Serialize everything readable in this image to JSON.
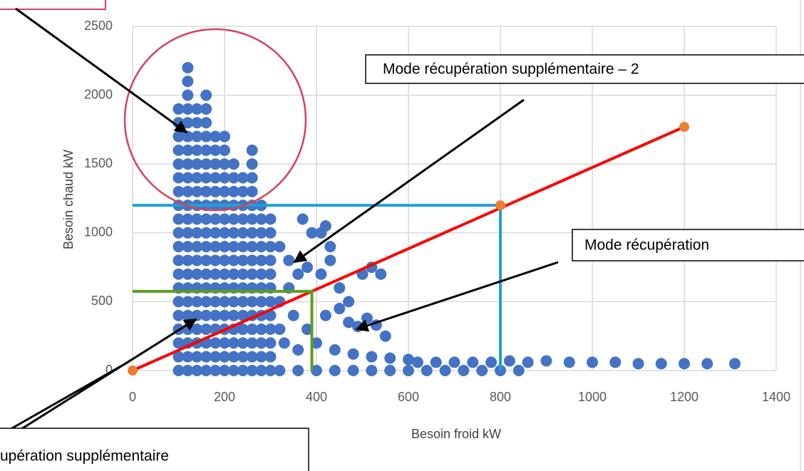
{
  "chart_data": {
    "type": "scatter",
    "x_label": "Besoin froid kW",
    "y_label": "Besoin chaud kW",
    "xlim": [
      0,
      1400
    ],
    "xticks": [
      0,
      200,
      400,
      600,
      800,
      1000,
      1200,
      1400
    ],
    "ylim": [
      0,
      2500
    ],
    "yticks": [
      0,
      500,
      1000,
      1500,
      2000,
      2500
    ],
    "grid": true,
    "series": [
      {
        "color": "#4472c4",
        "x": [
          100,
          100,
          100,
          100,
          100,
          100,
          100,
          100,
          100,
          100,
          100,
          100,
          100,
          100,
          100,
          100,
          100,
          100,
          100,
          100,
          120,
          120,
          120,
          120,
          120,
          120,
          120,
          120,
          120,
          120,
          120,
          120,
          120,
          120,
          120,
          120,
          120,
          120,
          120,
          120,
          120,
          120,
          120,
          140,
          140,
          140,
          140,
          140,
          140,
          140,
          140,
          140,
          140,
          140,
          140,
          140,
          140,
          140,
          140,
          140,
          140,
          140,
          140,
          160,
          160,
          160,
          160,
          160,
          160,
          160,
          160,
          160,
          160,
          160,
          160,
          160,
          160,
          160,
          160,
          160,
          160,
          160,
          160,
          160,
          180,
          180,
          180,
          180,
          180,
          180,
          180,
          180,
          180,
          180,
          180,
          180,
          180,
          180,
          180,
          180,
          180,
          180,
          200,
          200,
          200,
          200,
          200,
          200,
          200,
          200,
          200,
          200,
          200,
          200,
          200,
          200,
          200,
          200,
          200,
          200,
          220,
          220,
          220,
          220,
          220,
          220,
          220,
          220,
          220,
          220,
          220,
          220,
          220,
          220,
          220,
          220,
          240,
          240,
          240,
          240,
          240,
          240,
          240,
          240,
          240,
          240,
          240,
          240,
          240,
          240,
          240,
          260,
          260,
          260,
          260,
          260,
          260,
          260,
          260,
          260,
          260,
          260,
          260,
          260,
          260,
          260,
          260,
          260,
          280,
          280,
          280,
          280,
          280,
          280,
          280,
          280,
          280,
          280,
          280,
          280,
          280,
          300,
          300,
          300,
          300,
          300,
          300,
          300,
          300,
          300,
          300,
          300,
          320,
          340,
          360,
          370,
          390,
          410,
          420,
          430,
          380,
          410,
          430,
          450,
          470,
          500,
          520,
          540,
          320,
          350,
          380,
          420,
          450,
          470,
          490,
          510,
          530,
          550,
          330,
          360,
          400,
          440,
          480,
          520,
          560,
          600,
          320,
          360,
          400,
          440,
          480,
          520,
          560,
          600,
          640,
          680,
          720,
          760,
          800,
          840,
          620,
          660,
          700,
          740,
          780,
          820,
          860,
          900,
          950,
          1000,
          1050,
          1100,
          1150,
          1200,
          1250,
          1310,
          320,
          340,
          300
        ],
        "values": [
          0,
          100,
          200,
          300,
          400,
          500,
          600,
          700,
          800,
          900,
          1000,
          1100,
          1200,
          1300,
          1400,
          1500,
          1600,
          1700,
          1800,
          1900,
          0,
          100,
          200,
          300,
          400,
          500,
          600,
          700,
          800,
          900,
          1000,
          1100,
          1200,
          1300,
          1400,
          1500,
          1600,
          1700,
          1800,
          1900,
          2000,
          2100,
          2200,
          0,
          100,
          200,
          300,
          400,
          500,
          600,
          700,
          800,
          900,
          1000,
          1100,
          1200,
          1300,
          1400,
          1500,
          1600,
          1700,
          1800,
          1900,
          0,
          100,
          200,
          300,
          400,
          500,
          600,
          700,
          800,
          900,
          1000,
          1100,
          1200,
          1300,
          1400,
          1500,
          1600,
          1700,
          1800,
          1900,
          2000,
          0,
          100,
          200,
          300,
          400,
          500,
          600,
          700,
          800,
          900,
          1000,
          1100,
          1200,
          1300,
          1400,
          1500,
          1600,
          1700,
          0,
          100,
          200,
          300,
          400,
          500,
          600,
          700,
          800,
          900,
          1000,
          1100,
          1200,
          1300,
          1400,
          1500,
          1600,
          1700,
          0,
          100,
          200,
          300,
          400,
          500,
          600,
          700,
          800,
          900,
          1000,
          1100,
          1200,
          1300,
          1400,
          1500,
          0,
          100,
          200,
          300,
          400,
          500,
          600,
          700,
          800,
          900,
          1000,
          1100,
          1200,
          1300,
          1400,
          0,
          100,
          200,
          300,
          400,
          500,
          600,
          700,
          800,
          900,
          1000,
          1100,
          1200,
          1300,
          1400,
          1500,
          1600,
          0,
          100,
          200,
          300,
          400,
          500,
          600,
          700,
          800,
          900,
          1000,
          1100,
          1200,
          0,
          100,
          200,
          300,
          400,
          500,
          600,
          700,
          800,
          900,
          1000,
          900,
          800,
          700,
          1100,
          1000,
          1000,
          1050,
          900,
          750,
          700,
          800,
          600,
          500,
          700,
          750,
          700,
          500,
          400,
          300,
          400,
          450,
          350,
          320,
          380,
          330,
          250,
          200,
          150,
          200,
          150,
          120,
          100,
          90,
          80,
          0,
          0,
          0,
          0,
          0,
          0,
          0,
          0,
          0,
          0,
          0,
          0,
          0,
          0,
          60,
          60,
          60,
          60,
          60,
          70,
          60,
          70,
          60,
          60,
          60,
          50,
          50,
          50,
          50,
          50,
          300,
          600,
          1100
        ]
      },
      {
        "color": "#ed7d31",
        "x": [
          0,
          800,
          1200
        ],
        "values": [
          0,
          1200,
          1770
        ]
      }
    ],
    "reference_lines": [
      {
        "color": "#ff0000",
        "x": [
          0,
          1200
        ],
        "values": [
          0,
          1770
        ]
      },
      {
        "color": "#1fa0d8",
        "x": [
          0,
          800,
          800
        ],
        "values": [
          1200,
          1200,
          0
        ]
      },
      {
        "color": "#5a9e1c",
        "x": [
          0,
          390,
          390
        ],
        "values": [
          575,
          575,
          0
        ]
      }
    ],
    "annotations": [
      "Mode récupération supplémentaire – 2",
      "Mode récupération",
      "upération supplémentaire"
    ]
  }
}
